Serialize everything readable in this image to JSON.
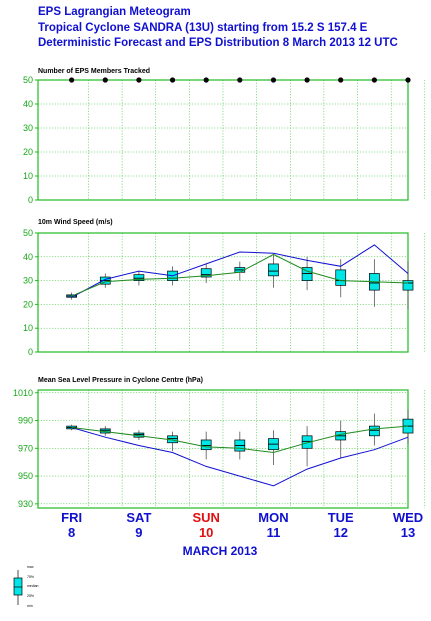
{
  "header": {
    "line1": "EPS Lagrangian Meteogram",
    "line2": "Tropical Cyclone SANDRA (13U) starting from 15.2 S  157.4 E",
    "line3": "Deterministic Forecast and EPS Distribution 8 March 2013 12 UTC"
  },
  "colors": {
    "title": "#1010d0",
    "grid": "#22bb22",
    "box": "#00e5e5",
    "deterministic": "#1010d0",
    "median_line": "#208a20",
    "weekend_day": "#e01010",
    "weekday": "#1010d0"
  },
  "x_axis": {
    "days": [
      {
        "name": "FRI",
        "date": "8",
        "weekend": false
      },
      {
        "name": "SAT",
        "date": "9",
        "weekend": false
      },
      {
        "name": "SUN",
        "date": "10",
        "weekend": true
      },
      {
        "name": "MON",
        "date": "11",
        "weekend": false
      },
      {
        "name": "TUE",
        "date": "12",
        "weekend": false
      },
      {
        "name": "WED",
        "date": "13",
        "weekend": false
      }
    ],
    "month_label": "MARCH    2013"
  },
  "legend": {
    "labels": [
      "max",
      "75%",
      "median",
      "25%",
      "min"
    ]
  },
  "chart_data": [
    {
      "type": "scatter",
      "title": "Number of EPS Members Tracked",
      "ylim": [
        0,
        50
      ],
      "yticks": [
        0,
        10,
        20,
        30,
        40,
        50
      ],
      "x": [
        0,
        0.5,
        1,
        1.5,
        2,
        2.5,
        3,
        3.5,
        4,
        4.5,
        5
      ],
      "values": [
        50,
        50,
        50,
        50,
        50,
        50,
        50,
        50,
        50,
        50,
        50
      ],
      "grid": true
    },
    {
      "type": "boxplot",
      "title": "10m Wind Speed (m/s)",
      "ylim": [
        0,
        50
      ],
      "yticks": [
        0,
        10,
        20,
        30,
        40,
        50
      ],
      "x": [
        0,
        0.5,
        1,
        1.5,
        2,
        2.5,
        3,
        3.5,
        4,
        4.5,
        5
      ],
      "boxes": [
        {
          "min": 22,
          "q1": 23,
          "median": 23.5,
          "q3": 24,
          "max": 25
        },
        {
          "min": 27,
          "q1": 28.5,
          "median": 30,
          "q3": 31.5,
          "max": 33
        },
        {
          "min": 28,
          "q1": 30,
          "median": 31,
          "q3": 32.5,
          "max": 34
        },
        {
          "min": 28,
          "q1": 30,
          "median": 31,
          "q3": 34,
          "max": 36
        },
        {
          "min": 29,
          "q1": 31.5,
          "median": 32.5,
          "q3": 35,
          "max": 37
        },
        {
          "min": 30,
          "q1": 33.5,
          "median": 34.5,
          "q3": 35.5,
          "max": 38
        },
        {
          "min": 27,
          "q1": 32,
          "median": 34,
          "q3": 37,
          "max": 41
        },
        {
          "min": 26,
          "q1": 30,
          "median": 33,
          "q3": 35.5,
          "max": 40
        },
        {
          "min": 23,
          "q1": 28,
          "median": 30,
          "q3": 34.5,
          "max": 39
        },
        {
          "min": 19,
          "q1": 26,
          "median": 29,
          "q3": 33,
          "max": 39
        },
        {
          "min": 18,
          "q1": 26,
          "median": 29,
          "q3": 30,
          "max": 38
        }
      ],
      "series": [
        {
          "name": "",
          "values": [
            23,
            30.5,
            34,
            32,
            37,
            42,
            41.5,
            38.5,
            36,
            45,
            33
          ]
        },
        {
          "name": "",
          "values": [
            23.5,
            29.5,
            30.5,
            31,
            32,
            33.5,
            41,
            34,
            30,
            29.5,
            29
          ]
        }
      ],
      "grid": true
    },
    {
      "type": "boxplot",
      "title": "Mean Sea Level Pressure in Cyclone Centre (hPa)",
      "ylim": [
        927,
        1012
      ],
      "yticks": [
        930,
        950,
        970,
        990,
        1010
      ],
      "x": [
        0,
        0.5,
        1,
        1.5,
        2,
        2.5,
        3,
        3.5,
        4,
        4.5,
        5
      ],
      "boxes": [
        {
          "min": 983,
          "q1": 984,
          "median": 985,
          "q3": 986,
          "max": 987
        },
        {
          "min": 979,
          "q1": 981,
          "median": 983,
          "q3": 984,
          "max": 986
        },
        {
          "min": 976,
          "q1": 978,
          "median": 980,
          "q3": 981,
          "max": 983
        },
        {
          "min": 968,
          "q1": 974,
          "median": 977,
          "q3": 979,
          "max": 982
        },
        {
          "min": 962,
          "q1": 969,
          "median": 972,
          "q3": 976,
          "max": 982
        },
        {
          "min": 962,
          "q1": 968,
          "median": 972,
          "q3": 976,
          "max": 982
        },
        {
          "min": 958,
          "q1": 969,
          "median": 973,
          "q3": 977,
          "max": 983
        },
        {
          "min": 957,
          "q1": 970,
          "median": 975,
          "q3": 979,
          "max": 986
        },
        {
          "min": 963,
          "q1": 976,
          "median": 979,
          "q3": 982,
          "max": 990
        },
        {
          "min": 972,
          "q1": 979,
          "median": 983,
          "q3": 986,
          "max": 995
        },
        {
          "min": 973,
          "q1": 981,
          "median": 986,
          "q3": 991,
          "max": 998
        }
      ],
      "series": [
        {
          "name": "",
          "values": [
            985,
            978,
            972,
            967,
            957,
            950,
            943,
            955,
            963,
            969,
            978
          ]
        },
        {
          "name": "",
          "values": [
            985,
            982,
            979,
            976,
            971,
            970,
            967,
            974,
            980,
            984,
            986
          ]
        }
      ],
      "grid": true
    }
  ]
}
